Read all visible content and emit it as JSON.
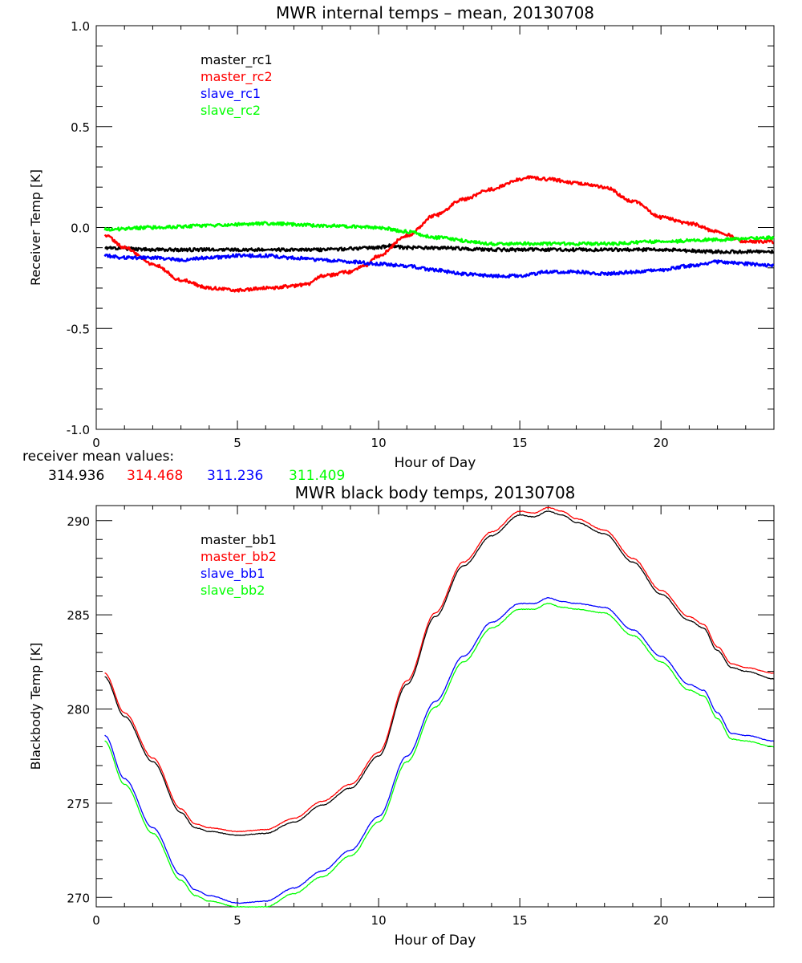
{
  "chart_data": [
    {
      "type": "line",
      "title": "MWR internal temps – mean, 20130708",
      "xlabel": "Hour of Day",
      "ylabel": "Receiver Temp [K]",
      "xlim": [
        0,
        24
      ],
      "ylim": [
        -1.0,
        1.0
      ],
      "x_ticks": [
        0,
        5,
        10,
        15,
        20
      ],
      "y_ticks": [
        "-1.0",
        "-0.5",
        "0.0",
        "0.5",
        "1.0"
      ],
      "grid": false,
      "legend_position": "top-left",
      "series": [
        {
          "name": "master_rc1",
          "color": "#000000",
          "x": [
            0.3,
            2,
            4,
            6,
            8,
            10,
            10.4,
            11,
            12,
            14,
            15,
            16,
            18,
            20,
            22,
            24
          ],
          "y": [
            -0.1,
            -0.11,
            -0.11,
            -0.11,
            -0.11,
            -0.1,
            -0.09,
            -0.1,
            -0.1,
            -0.11,
            -0.11,
            -0.11,
            -0.11,
            -0.11,
            -0.12,
            -0.12
          ]
        },
        {
          "name": "master_rc2",
          "color": "#ff0000",
          "x": [
            0.3,
            1,
            2,
            3,
            4,
            5,
            6,
            7,
            7.5,
            8,
            9,
            9.5,
            10,
            11,
            12,
            13,
            14,
            15,
            15.2,
            16,
            17,
            18,
            19,
            20,
            21,
            22,
            23,
            24
          ],
          "y": [
            -0.04,
            -0.1,
            -0.18,
            -0.26,
            -0.3,
            -0.31,
            -0.3,
            -0.29,
            -0.28,
            -0.24,
            -0.22,
            -0.19,
            -0.14,
            -0.04,
            0.06,
            0.14,
            0.19,
            0.24,
            0.25,
            0.24,
            0.22,
            0.2,
            0.13,
            0.05,
            0.02,
            -0.02,
            -0.07,
            -0.07
          ]
        },
        {
          "name": "slave_rc1",
          "color": "#0000ff",
          "x": [
            0.3,
            1,
            2,
            3,
            4,
            5,
            6,
            7,
            8,
            9,
            10,
            11,
            12,
            13,
            14,
            15,
            16,
            17,
            18,
            19,
            20,
            21,
            22,
            23,
            24
          ],
          "y": [
            -0.14,
            -0.15,
            -0.15,
            -0.16,
            -0.15,
            -0.14,
            -0.14,
            -0.15,
            -0.16,
            -0.17,
            -0.18,
            -0.19,
            -0.21,
            -0.23,
            -0.24,
            -0.24,
            -0.22,
            -0.22,
            -0.23,
            -0.22,
            -0.21,
            -0.19,
            -0.17,
            -0.18,
            -0.19
          ]
        },
        {
          "name": "slave_rc2",
          "color": "#00ff00",
          "x": [
            0.3,
            2,
            4,
            6,
            8,
            10,
            11,
            12,
            14,
            16,
            18,
            20,
            22,
            24
          ],
          "y": [
            -0.01,
            0.0,
            0.01,
            0.02,
            0.01,
            0.0,
            -0.02,
            -0.05,
            -0.08,
            -0.08,
            -0.08,
            -0.07,
            -0.06,
            -0.05
          ]
        }
      ]
    },
    {
      "type": "line",
      "title": "MWR black body temps, 20130708",
      "xlabel": "Hour of Day",
      "ylabel": "Blackbody Temp [K]",
      "xlim": [
        0,
        24
      ],
      "ylim": [
        269.5,
        290.8
      ],
      "x_ticks": [
        0,
        5,
        10,
        15,
        20
      ],
      "y_ticks": [
        "270",
        "275",
        "280",
        "285",
        "290"
      ],
      "grid": false,
      "legend_position": "top-left",
      "series": [
        {
          "name": "master_bb1",
          "color": "#000000",
          "x": [
            0.3,
            1,
            2,
            3,
            3.5,
            4,
            5,
            6,
            7,
            8,
            9,
            10,
            11,
            12,
            13,
            14,
            15,
            15.5,
            16,
            16.5,
            17,
            18,
            19,
            20,
            21,
            21.5,
            22,
            22.5,
            23,
            24
          ],
          "y": [
            281.7,
            279.6,
            277.2,
            274.5,
            273.7,
            273.5,
            273.3,
            273.4,
            274.0,
            274.9,
            275.8,
            277.5,
            281.3,
            284.9,
            287.6,
            289.2,
            290.3,
            290.2,
            290.5,
            290.3,
            289.9,
            289.3,
            287.8,
            286.1,
            284.7,
            284.3,
            283.1,
            282.2,
            282.0,
            281.6
          ]
        },
        {
          "name": "master_bb2",
          "color": "#ff0000",
          "x": [
            0.3,
            1,
            2,
            3,
            3.5,
            4,
            5,
            6,
            7,
            8,
            9,
            10,
            11,
            12,
            13,
            14,
            15,
            15.5,
            16,
            16.5,
            17,
            18,
            19,
            20,
            21,
            21.5,
            22,
            22.5,
            23,
            24
          ],
          "y": [
            281.9,
            279.8,
            277.4,
            274.7,
            273.9,
            273.7,
            273.5,
            273.6,
            274.2,
            275.1,
            276.0,
            277.7,
            281.5,
            285.1,
            287.8,
            289.4,
            290.5,
            290.4,
            290.7,
            290.5,
            290.1,
            289.5,
            288.0,
            286.3,
            284.9,
            284.5,
            283.3,
            282.4,
            282.2,
            281.9
          ]
        },
        {
          "name": "slave_bb1",
          "color": "#0000ff",
          "x": [
            0.3,
            1,
            2,
            3,
            3.5,
            4,
            5,
            6,
            7,
            8,
            9,
            10,
            11,
            12,
            13,
            14,
            15,
            15.5,
            16,
            16.5,
            17,
            18,
            19,
            20,
            21,
            21.5,
            22,
            22.5,
            23,
            24
          ],
          "y": [
            278.6,
            276.3,
            273.7,
            271.2,
            270.4,
            270.1,
            269.7,
            269.8,
            270.5,
            271.4,
            272.5,
            274.3,
            277.5,
            280.4,
            282.8,
            284.6,
            285.6,
            285.6,
            285.9,
            285.7,
            285.6,
            285.4,
            284.2,
            282.8,
            281.3,
            281.0,
            279.8,
            278.7,
            278.6,
            278.3
          ]
        },
        {
          "name": "slave_bb2",
          "color": "#00ff00",
          "x": [
            0.3,
            1,
            2,
            3,
            3.5,
            4,
            5,
            6,
            7,
            8,
            9,
            10,
            11,
            12,
            13,
            14,
            15,
            15.5,
            16,
            16.5,
            17,
            18,
            19,
            20,
            21,
            21.5,
            22,
            22.5,
            23,
            24
          ],
          "y": [
            278.3,
            276.0,
            273.4,
            270.9,
            270.1,
            269.8,
            269.5,
            269.5,
            270.2,
            271.1,
            272.2,
            274.0,
            277.2,
            280.1,
            282.5,
            284.3,
            285.3,
            285.3,
            285.6,
            285.4,
            285.3,
            285.1,
            283.9,
            282.5,
            281.0,
            280.7,
            279.5,
            278.4,
            278.3,
            278.0
          ]
        }
      ]
    }
  ],
  "receiver_mean": {
    "label": "receiver mean values:",
    "values": [
      "314.936",
      "314.468",
      "311.236",
      "311.409"
    ],
    "colors": [
      "#000000",
      "#ff0000",
      "#0000ff",
      "#00ff00"
    ]
  }
}
